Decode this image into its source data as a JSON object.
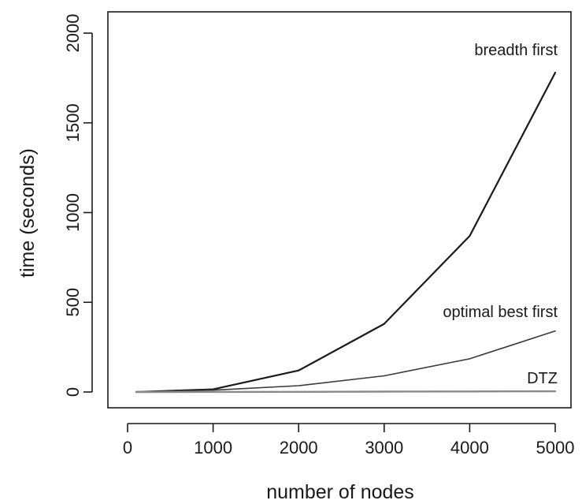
{
  "chart_data": {
    "type": "line",
    "title": "",
    "xlabel": "number of nodes",
    "ylabel": "time (seconds)",
    "xlim": [
      0,
      5000
    ],
    "ylim": [
      0,
      2000
    ],
    "xticks": [
      0,
      1000,
      2000,
      3000,
      4000,
      5000
    ],
    "yticks": [
      0,
      500,
      1000,
      1500,
      2000
    ],
    "grid": false,
    "legend": "none",
    "series": [
      {
        "name": "breadth first",
        "color": "#1a1a1a",
        "x": [
          100,
          1000,
          2000,
          3000,
          4000,
          5000
        ],
        "y": [
          0,
          15,
          120,
          380,
          870,
          1780
        ]
      },
      {
        "name": "optimal best first",
        "color": "#3a3a3a",
        "x": [
          100,
          1000,
          2000,
          3000,
          4000,
          5000
        ],
        "y": [
          0,
          10,
          35,
          90,
          185,
          340
        ]
      },
      {
        "name": "DTZ",
        "color": "#8a8a8a",
        "x": [
          100,
          1000,
          2000,
          3000,
          4000,
          5000
        ],
        "y": [
          0,
          0.5,
          1,
          2,
          3,
          4
        ]
      }
    ]
  }
}
